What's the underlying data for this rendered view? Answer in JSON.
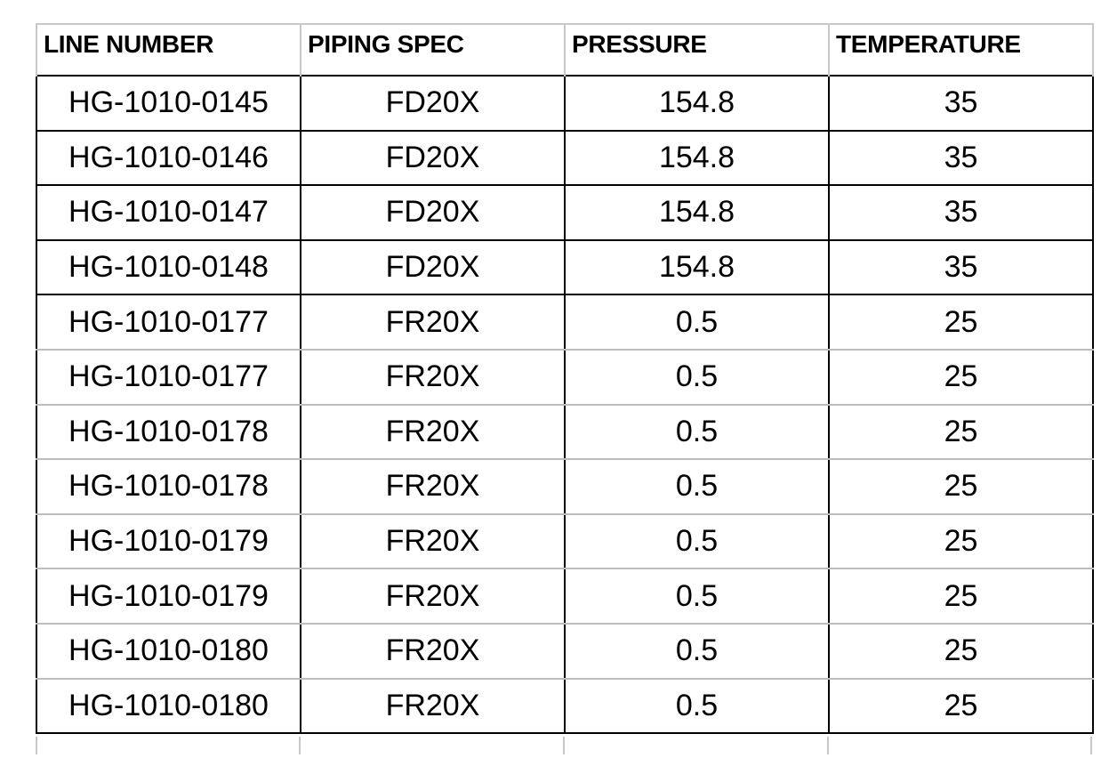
{
  "table": {
    "headers": [
      "LINE NUMBER",
      "PIPING SPEC",
      "PRESSURE",
      "TEMPERATURE"
    ],
    "rows": [
      [
        "HG-1010-0145",
        "FD20X",
        "154.8",
        "35"
      ],
      [
        "HG-1010-0146",
        "FD20X",
        "154.8",
        "35"
      ],
      [
        "HG-1010-0147",
        "FD20X",
        "154.8",
        "35"
      ],
      [
        "HG-1010-0148",
        "FD20X",
        "154.8",
        "35"
      ],
      [
        "HG-1010-0177",
        "FR20X",
        "0.5",
        "25"
      ],
      [
        "HG-1010-0177",
        "FR20X",
        "0.5",
        "25"
      ],
      [
        "HG-1010-0178",
        "FR20X",
        "0.5",
        "25"
      ],
      [
        "HG-1010-0178",
        "FR20X",
        "0.5",
        "25"
      ],
      [
        "HG-1010-0179",
        "FR20X",
        "0.5",
        "25"
      ],
      [
        "HG-1010-0179",
        "FR20X",
        "0.5",
        "25"
      ],
      [
        "HG-1010-0180",
        "FR20X",
        "0.5",
        "25"
      ],
      [
        "HG-1010-0180",
        "FR20X",
        "0.5",
        "25"
      ]
    ]
  }
}
